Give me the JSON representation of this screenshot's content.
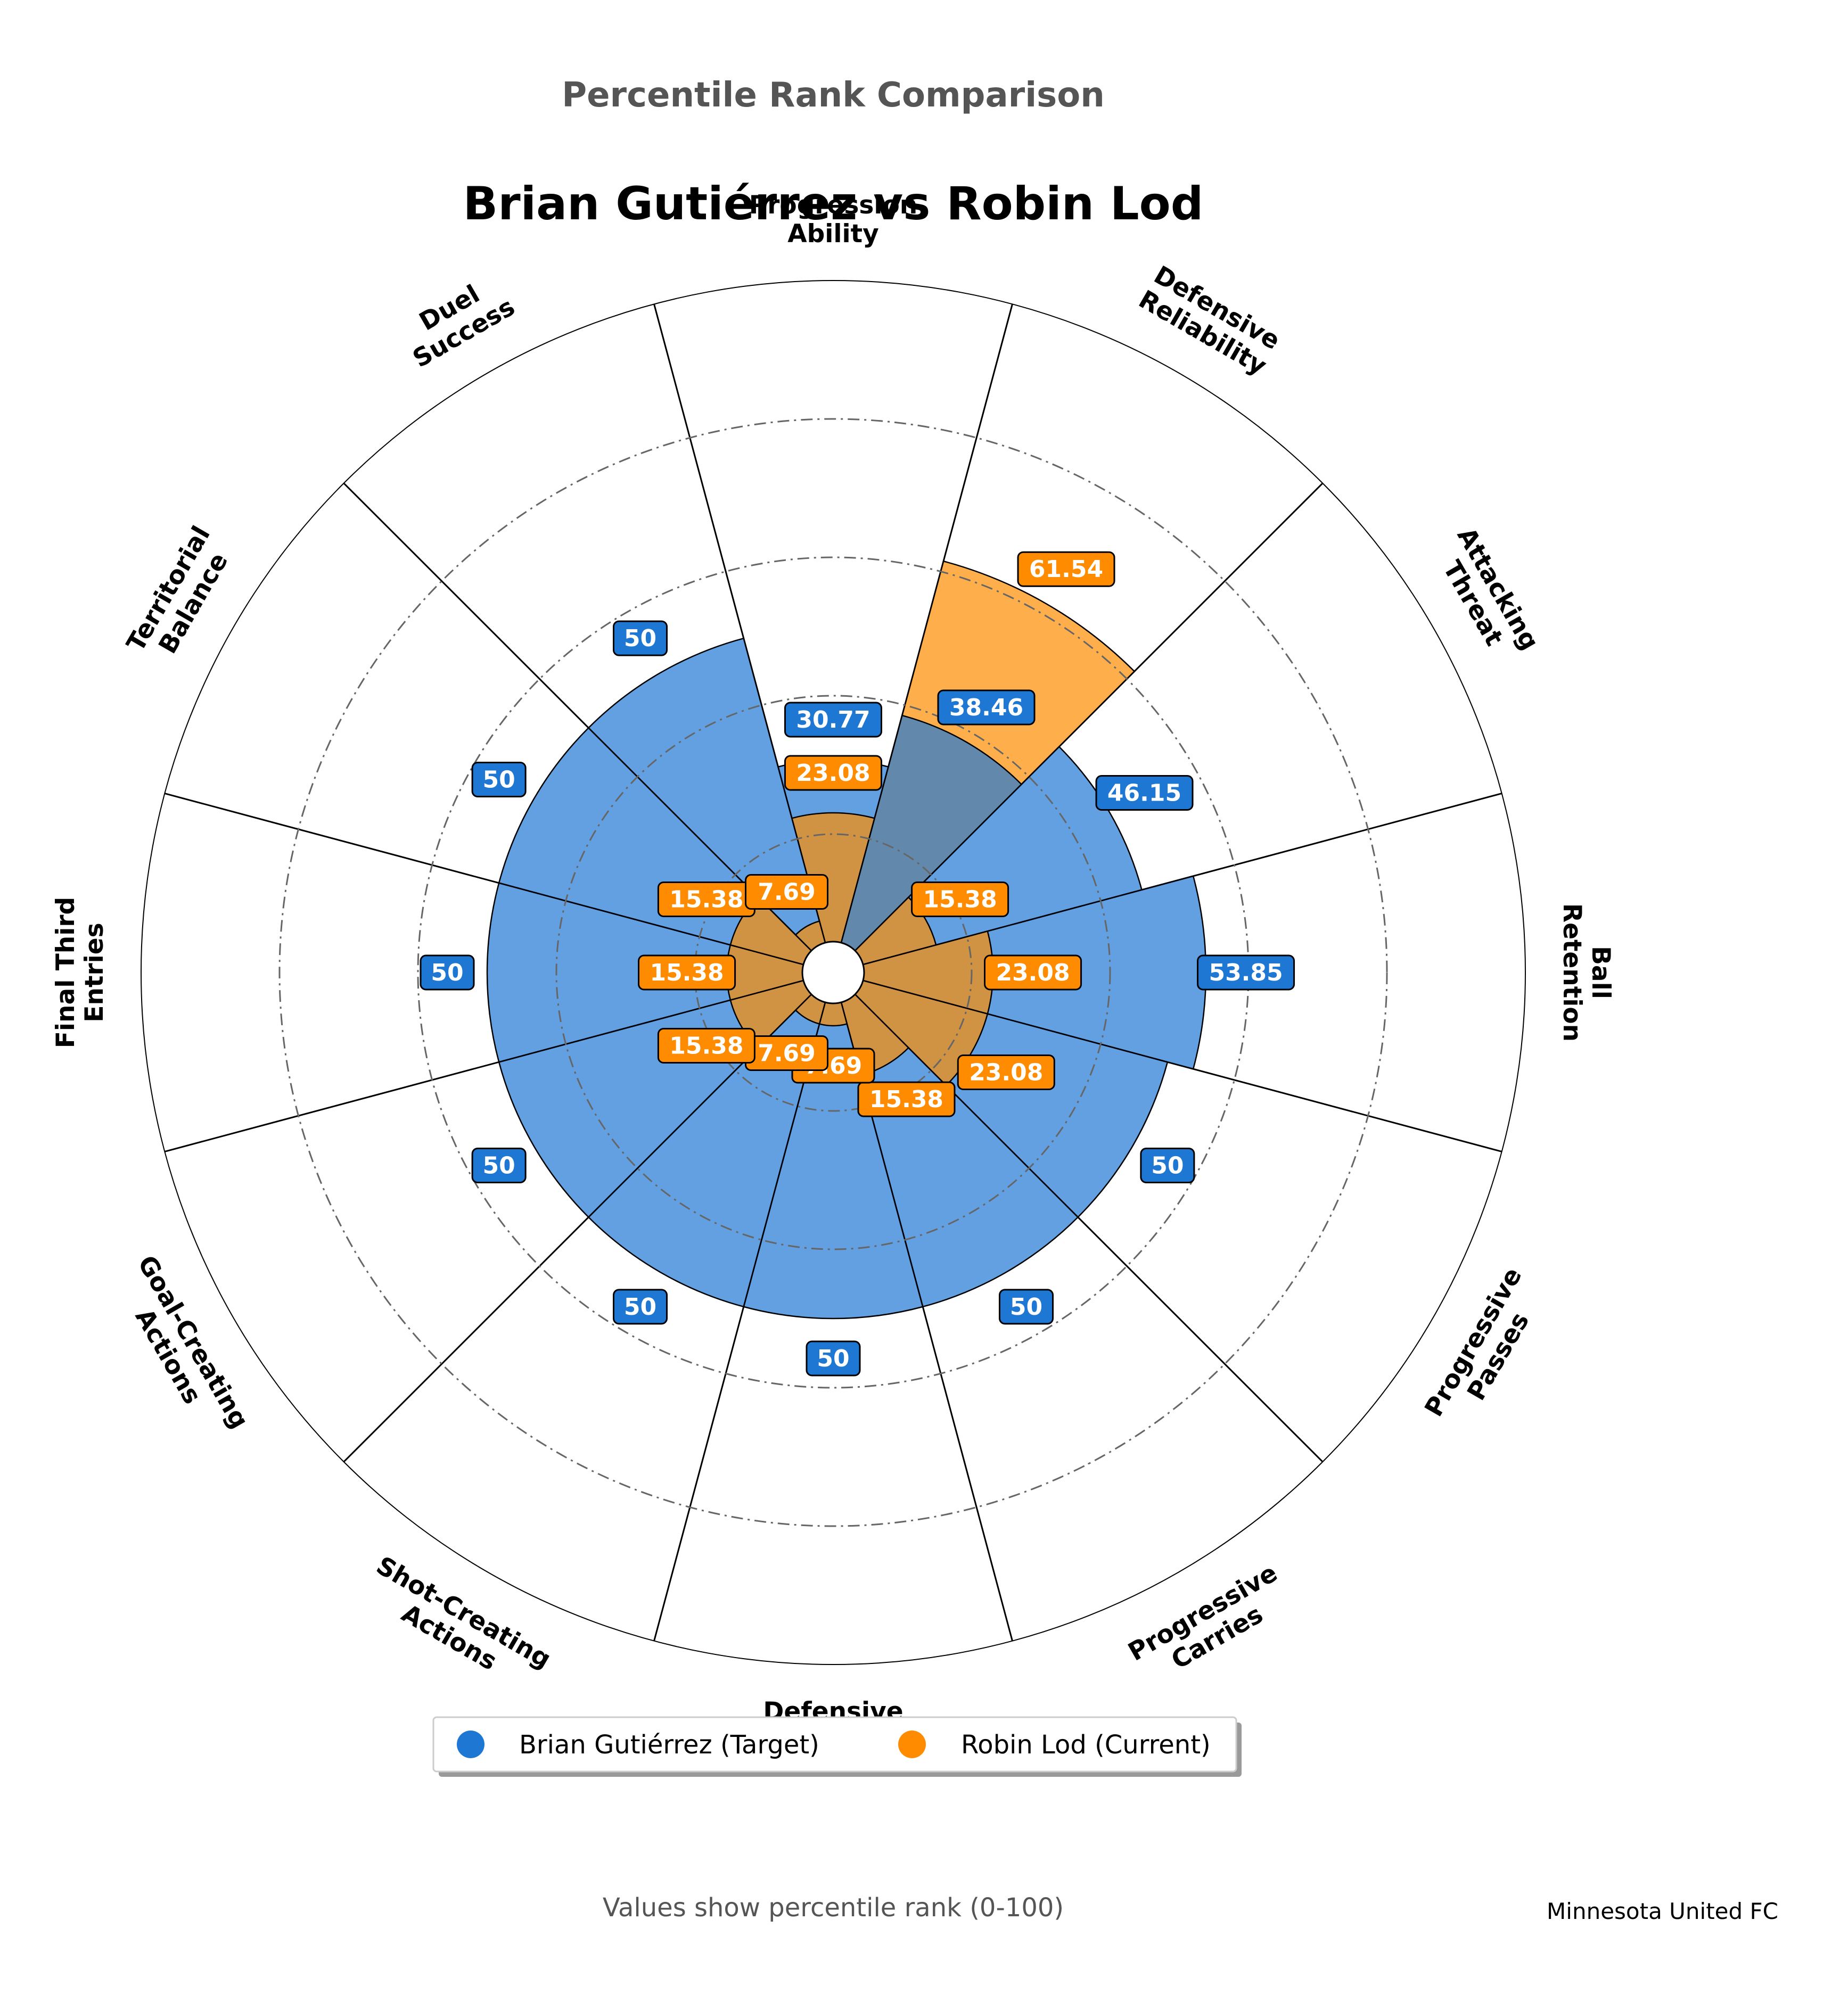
{
  "chart_data": {
    "type": "polar-bar",
    "suptitle": "Percentile Rank Comparison",
    "title": "Brian Gutiérrez vs Robin Lod",
    "categories": [
      "Progression\nAbility",
      "Defensive\nReliability",
      "Attacking\nThreat",
      "Ball\nRetention",
      "Progressive\nPasses",
      "Progressive\nCarries",
      "Defensive\nActions",
      "Shot-Creating\nActions",
      "Goal-Creating\nActions",
      "Final Third\nEntries",
      "Territorial\nBalance",
      "Duel\nSuccess"
    ],
    "series": [
      {
        "name": "Brian Gutiérrez (Target)",
        "color": "#1f77d4",
        "values": [
          30.77,
          38.46,
          46.15,
          53.85,
          50,
          50,
          50,
          50,
          50,
          50,
          50,
          50
        ]
      },
      {
        "name": "Robin Lod (Current)",
        "color": "#ff8c00",
        "values": [
          23.08,
          61.54,
          15.38,
          23.08,
          23.08,
          15.38,
          7.69,
          7.69,
          15.38,
          15.38,
          15.38,
          7.69
        ]
      }
    ],
    "rlim": [
      0,
      100
    ],
    "radial_grid": [
      20,
      40,
      60,
      80,
      100
    ],
    "grid": true,
    "legend_position": "bottom-center"
  },
  "footer": {
    "note": "Values show percentile rank (0-100)",
    "team": "Minnesota United FC"
  }
}
